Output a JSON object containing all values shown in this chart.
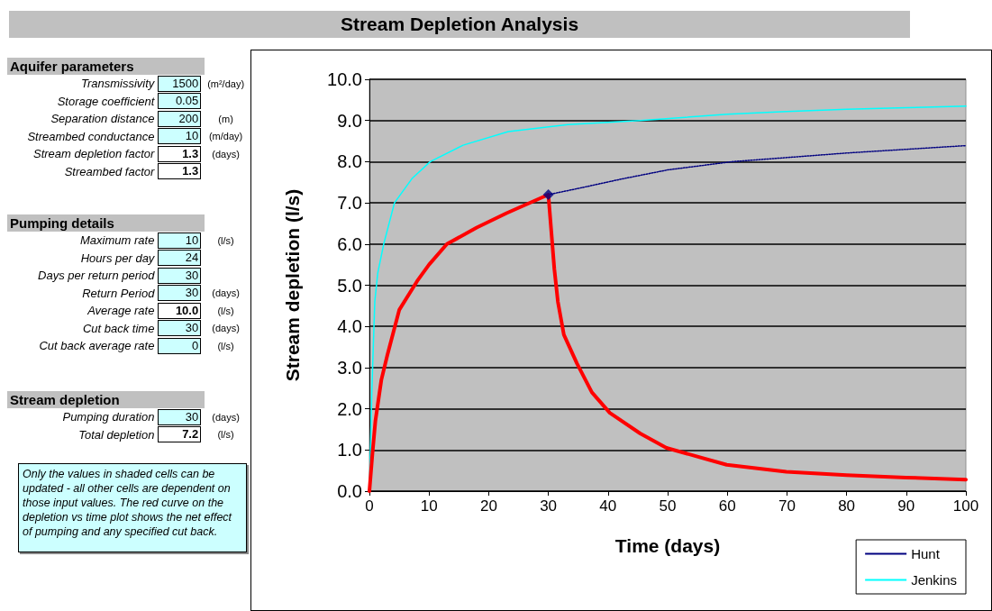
{
  "chart_data": [
    {
      "type": "other",
      "title": "Aquifer parameters",
      "categories": [
        "Transmissivity",
        "Storage coefficient",
        "Separation distance",
        "Streambed conductance",
        "Stream depletion factor",
        "Streambed factor"
      ],
      "series": [
        {
          "values": [
            1500,
            0.05,
            200,
            10,
            1.3,
            1.3
          ],
          "value_labels": [
            "1500",
            "0.05",
            "200",
            "10",
            "1.3",
            "1.3"
          ],
          "colors": [
            "#ccffff",
            "#ccffff",
            "#ccffff",
            "#ccffff",
            "#ffffff",
            "#ffffff"
          ]
        },
        {
          "values": [
            null,
            null,
            null,
            null,
            null,
            null
          ],
          "value_labels": [
            "(m²/day)",
            null,
            "(m)",
            "(m/day)",
            "(days)",
            null
          ]
        }
      ]
    },
    {
      "type": "other",
      "title": "Pumping details",
      "categories": [
        "Maximum rate",
        "Hours per day",
        "Days per return period",
        "Return Period",
        "Average rate",
        "Cut back time",
        "Cut back average rate"
      ],
      "series": [
        {
          "values": [
            10,
            24,
            30,
            30,
            10.0,
            30,
            0
          ],
          "value_labels": [
            "10",
            "24",
            "30",
            "30",
            "10.0",
            "30",
            "0"
          ],
          "colors": [
            "#ccffff",
            "#ccffff",
            "#ccffff",
            "#ccffff",
            "#ffffff",
            "#ccffff",
            "#ccffff"
          ]
        },
        {
          "values": [
            null,
            null,
            null,
            null,
            null,
            null,
            null
          ],
          "value_labels": [
            "(l/s)",
            null,
            null,
            "(days)",
            "(l/s)",
            "(days)",
            "(l/s)"
          ]
        }
      ]
    },
    {
      "type": "other",
      "title": "Stream depletion",
      "categories": [
        "Pumping duration",
        "Total depletion"
      ],
      "series": [
        {
          "values": [
            30,
            7.2
          ],
          "value_labels": [
            "30",
            "7.2"
          ],
          "colors": [
            "#ccffff",
            "#ffffff"
          ]
        },
        {
          "values": [
            null,
            null
          ],
          "value_labels": [
            "(days)",
            "(l/s)"
          ]
        }
      ],
      "annotations": [
        "Only the values in shaded cells can be updated - all other cells are dependent on those input values. The red curve on the depletion vs time plot shows the net effect of pumping and any specified cut back."
      ]
    },
    {
      "type": "line",
      "title": "Stream Depletion Analysis",
      "xlabel": "Time (days)",
      "ylabel": "Stream depletion (l/s)",
      "xlim": [
        0,
        100
      ],
      "xticks": [
        0,
        10,
        20,
        30,
        40,
        50,
        60,
        70,
        80,
        90,
        100
      ],
      "ylim": [
        0,
        10
      ],
      "yticks": [
        {
          "value": 0,
          "label": "0.0"
        },
        {
          "value": 1,
          "label": "1.0"
        },
        {
          "value": 2,
          "label": "2.0"
        },
        {
          "value": 3,
          "label": "3.0"
        },
        {
          "value": 4,
          "label": "4.0"
        },
        {
          "value": 5,
          "label": "5.0"
        },
        {
          "value": 6,
          "label": "6.0"
        },
        {
          "value": 7,
          "label": "7.0"
        },
        {
          "value": 8,
          "label": "8.0"
        },
        {
          "value": 9,
          "label": "9.0"
        },
        {
          "value": 10,
          "label": "10.0"
        }
      ],
      "grid": "y",
      "legend": "bottom right",
      "marker": "none",
      "series": [
        {
          "color": "#ff0000",
          "line_style": "solid",
          "x": [
            0,
            0.5,
            1,
            2,
            3,
            5,
            8,
            10,
            13,
            18,
            23,
            30,
            31,
            31.6,
            32.6,
            34.8,
            37.3,
            40.3,
            45.4,
            49.8,
            59.9,
            69.9,
            80,
            90,
            100
          ],
          "values": [
            0,
            0.9,
            1.7,
            2.7,
            3.3,
            4.4,
            5.1,
            5.5,
            6.0,
            6.4,
            6.75,
            7.2,
            5.4,
            4.6,
            3.8,
            3.1,
            2.4,
            1.9,
            1.4,
            1.05,
            0.64,
            0.47,
            0.39,
            0.33,
            0.28
          ]
        },
        {
          "name": "Hunt",
          "color": "#000080",
          "line_style": "dotted",
          "x": [
            30,
            35,
            42.3,
            50,
            60.8,
            70,
            80,
            90,
            100
          ],
          "values": [
            7.2,
            7.35,
            7.58,
            7.8,
            8.0,
            8.1,
            8.21,
            8.3,
            8.39
          ]
        },
        {
          "name": "Jenkins",
          "color": "#00ffff",
          "line_style": "solid",
          "x": [
            0,
            0.4,
            0.9,
            1.4,
            2.4,
            4.2,
            7.2,
            10.2,
            15.7,
            23.3,
            33.3,
            45.4,
            60,
            69.9,
            80,
            90,
            100
          ],
          "values": [
            0,
            2.4,
            4.6,
            5.3,
            6.0,
            7.0,
            7.6,
            8.0,
            8.4,
            8.73,
            8.9,
            9.0,
            9.15,
            9.22,
            9.27,
            9.31,
            9.35
          ]
        },
        {
          "type": "scatter",
          "color": "#000080",
          "marker": "diamond",
          "x": [
            30
          ],
          "values": [
            7.2
          ]
        }
      ]
    }
  ]
}
